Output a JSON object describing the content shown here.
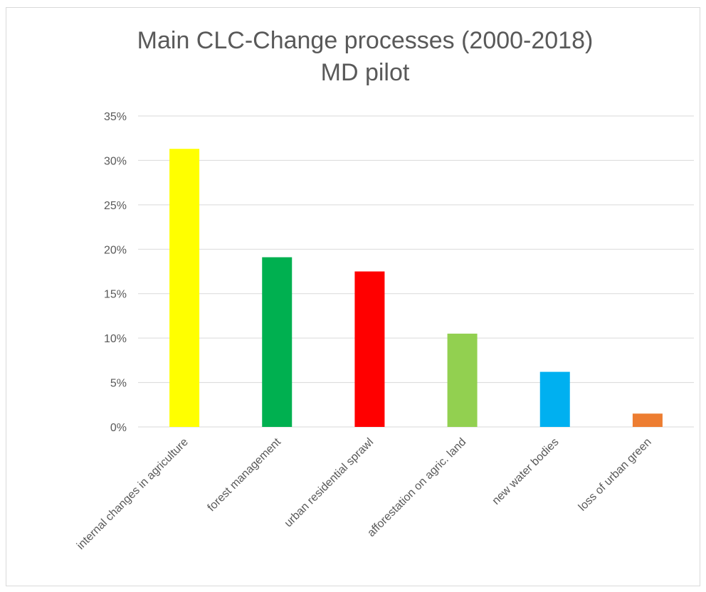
{
  "chart_data": {
    "type": "bar",
    "title": "Main CLC-Change  processes (2000-2018)",
    "subtitle": "MD pilot",
    "xlabel": "",
    "ylabel": "",
    "ylim": [
      0,
      35
    ],
    "yticks": [
      "0%",
      "5%",
      "10%",
      "15%",
      "20%",
      "25%",
      "30%",
      "35%"
    ],
    "grid": true,
    "legend": "none",
    "categories": [
      "internal changes in agriculture",
      "forest management",
      "urban residential sprawl",
      "afforestation on agric. land",
      "new water bodies",
      "loss of urban green"
    ],
    "values": [
      31.3,
      19.1,
      17.5,
      10.5,
      6.2,
      1.5
    ],
    "colors": [
      "#ffff00",
      "#00b050",
      "#ff0000",
      "#92d050",
      "#00b0f0",
      "#ed7d31"
    ],
    "grid_color": "#d9d9d9"
  }
}
